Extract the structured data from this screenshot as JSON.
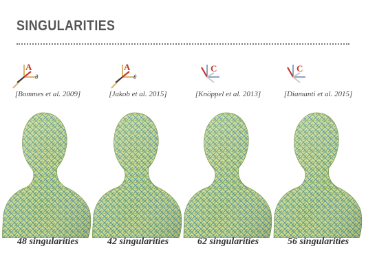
{
  "header": {
    "title": "SINGULARITIES"
  },
  "panels": [
    {
      "frame_letter": "A",
      "angle_label": "θ",
      "citation": "[Bommes et al. 2009]",
      "count": "48 singularities"
    },
    {
      "frame_letter": "A",
      "angle_label": "θ",
      "citation": "[Jakob et al. 2015]",
      "count": "42 singularities"
    },
    {
      "frame_letter": "C",
      "angle_label": "",
      "citation": "[Knöppel et al. 2013]",
      "count": "62 singularities"
    },
    {
      "frame_letter": "C",
      "angle_label": "",
      "citation": "[Diamanti et al. 2015]",
      "count": "56 singularities"
    }
  ],
  "colors": {
    "title": "#555555",
    "accent_red": "#c0392b",
    "axis_orange": "#d9b46a",
    "axis_blue": "#8aa4c8",
    "mesh_base": "#c9d97e",
    "hatch_blue": "#4a7fb0",
    "hatch_teal": "#3b8c7a"
  },
  "icons": [
    "coordinate-frame-icon"
  ]
}
